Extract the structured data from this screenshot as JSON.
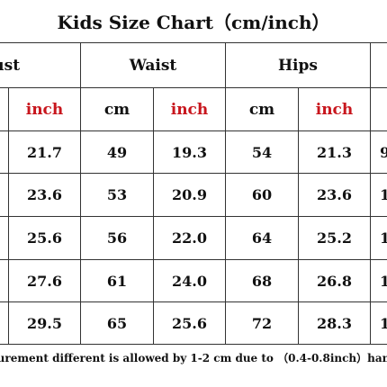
{
  "title": "Kids Size Chart（cm/inch）",
  "groups": [
    "Bust",
    "Waist",
    "Hips"
  ],
  "units": [
    "inch",
    "cm",
    "inch",
    "cm",
    "inch"
  ],
  "rows": [
    [
      "21.7",
      "49",
      "19.3",
      "54",
      "21.3",
      "9"
    ],
    [
      "23.6",
      "53",
      "20.9",
      "60",
      "23.6",
      "1"
    ],
    [
      "25.6",
      "56",
      "22.0",
      "64",
      "25.2",
      "1"
    ],
    [
      "27.6",
      "61",
      "24.0",
      "68",
      "26.8",
      "1"
    ],
    [
      "29.5",
      "65",
      "25.6",
      "72",
      "28.3",
      "1"
    ]
  ],
  "note": "urement different is allowed by 1-2 cm due to （0.4-0.8inch）han",
  "colors": {
    "inch_label": "#c8161d",
    "text": "#111111",
    "grid": "#333333"
  }
}
